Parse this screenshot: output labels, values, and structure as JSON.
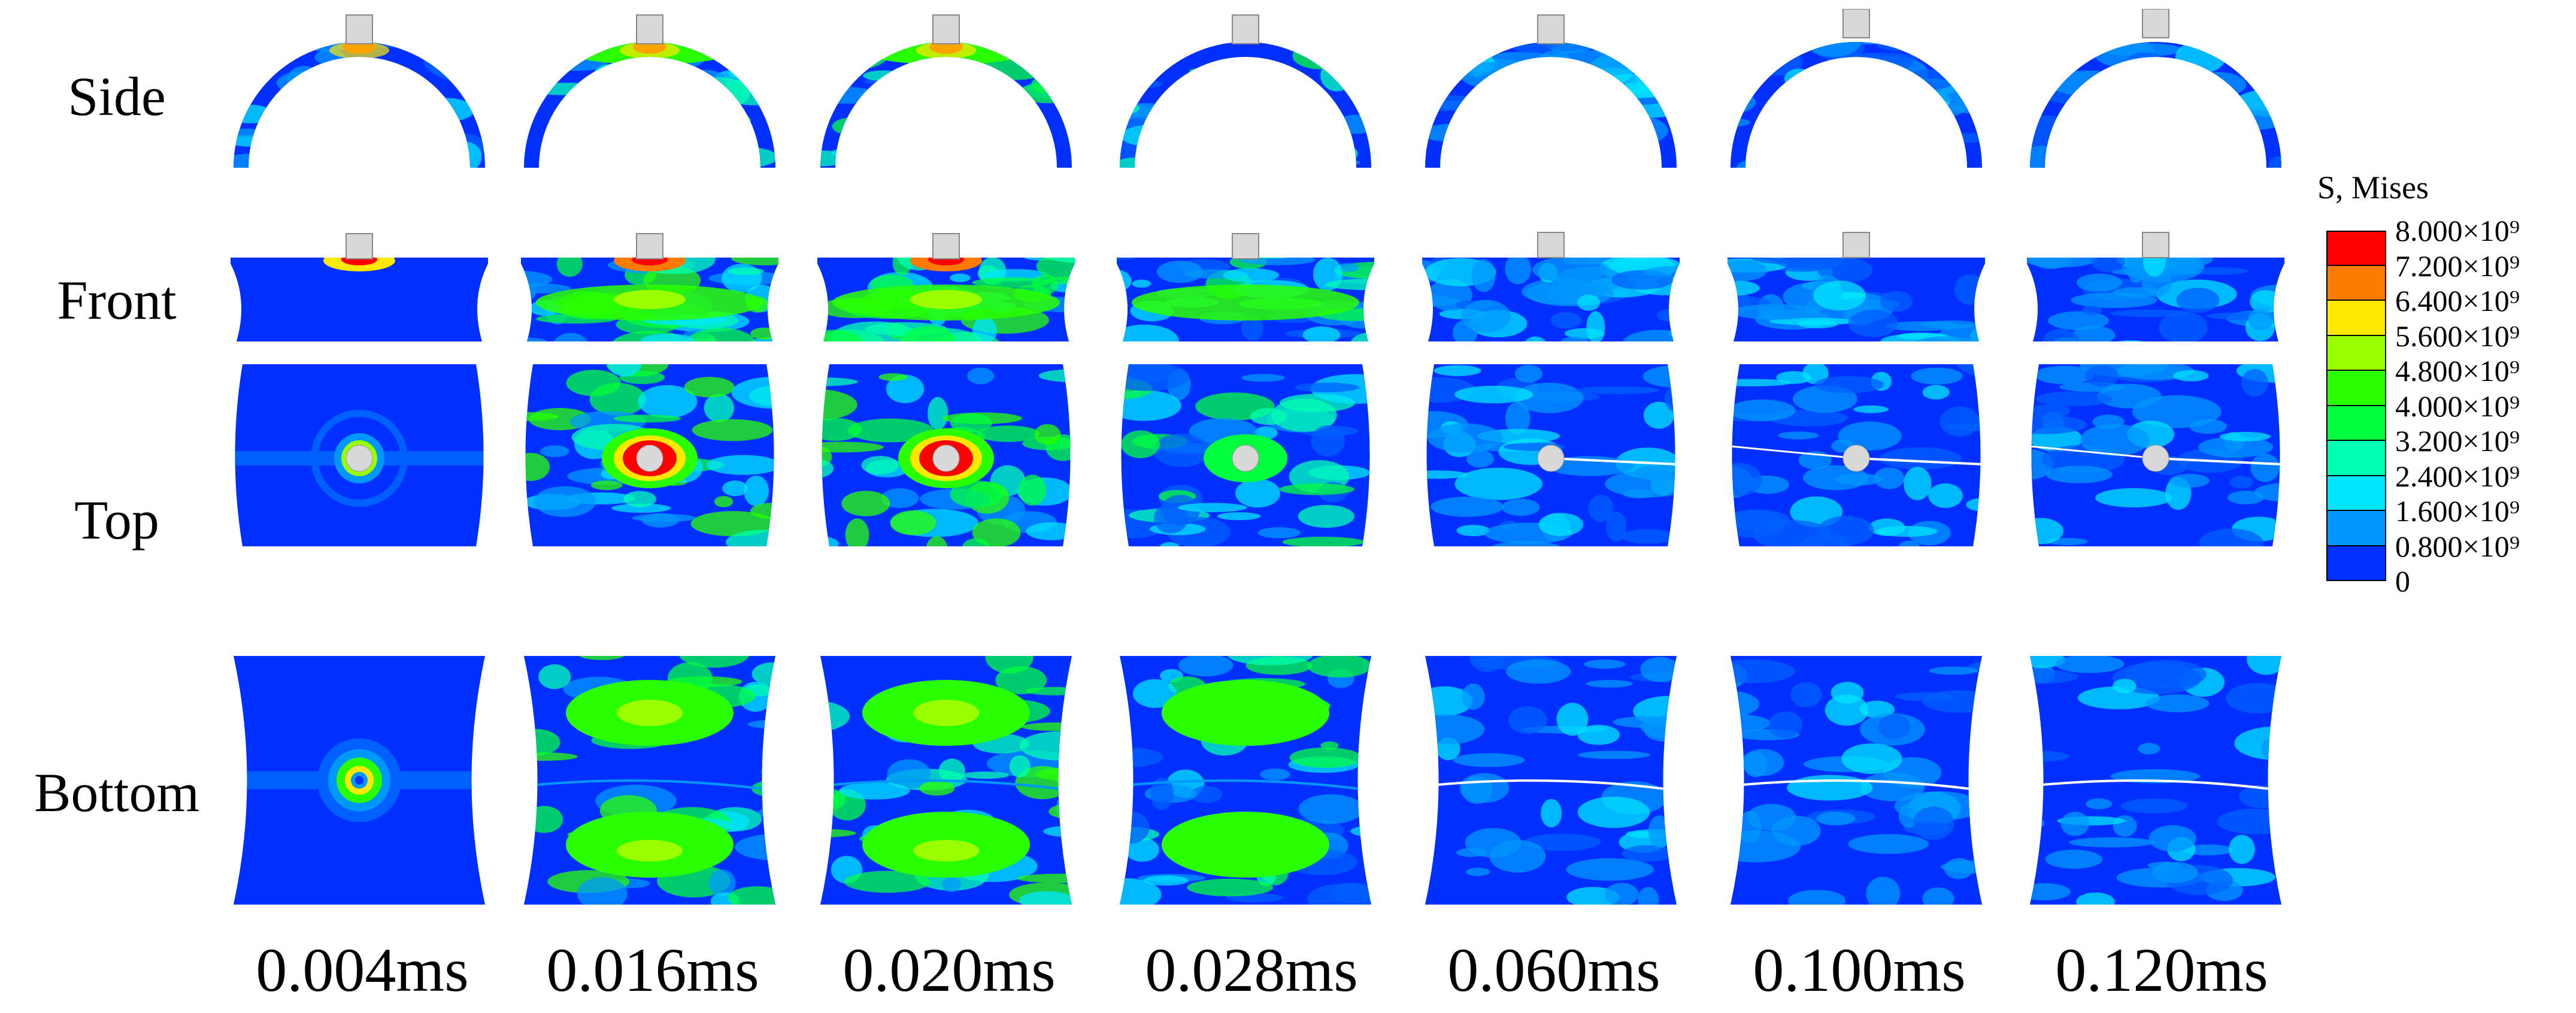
{
  "rows": [
    {
      "id": "side",
      "label": "Side"
    },
    {
      "id": "front",
      "label": "Front"
    },
    {
      "id": "top",
      "label": "Top"
    },
    {
      "id": "bottom",
      "label": "Bottom"
    }
  ],
  "times": [
    "0.004ms",
    "0.016ms",
    "0.020ms",
    "0.028ms",
    "0.060ms",
    "0.100ms",
    "0.120ms"
  ],
  "legend": {
    "title": "S, Mises",
    "ticks": [
      "8.000×10⁹",
      "7.200×10⁹",
      "6.400×10⁹",
      "5.600×10⁹",
      "4.800×10⁹",
      "4.000×10⁹",
      "3.200×10⁹",
      "2.400×10⁹",
      "1.600×10⁹",
      "0.800×10⁹",
      "0"
    ],
    "colors": [
      "#ff0000",
      "#ff7a00",
      "#ffe800",
      "#9cff00",
      "#2aff00",
      "#00ff3c",
      "#00ffb0",
      "#00e6ff",
      "#0098ff",
      "#0030ff"
    ]
  }
}
